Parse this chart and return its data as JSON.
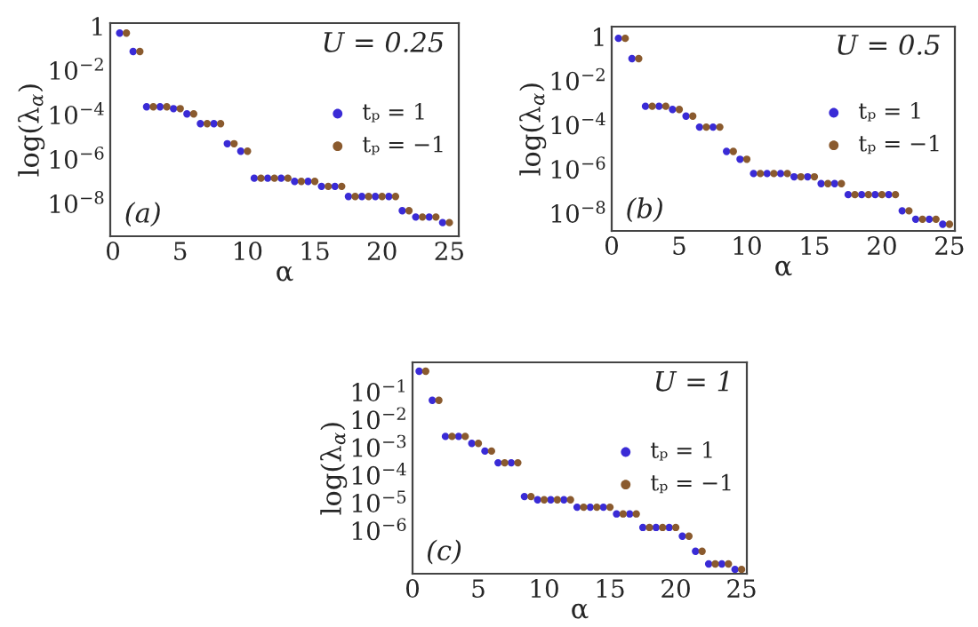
{
  "chart_data": [
    {
      "type": "scatter",
      "xlabel": "α",
      "ylabel": "log(λ$_{α}$)",
      "annotations": [
        "U = 0.25",
        "(a)"
      ],
      "log": "y",
      "marker": "circle",
      "legend": "right",
      "grid": false,
      "xlim": [
        -0.2,
        25.7
      ],
      "xticks": [
        0,
        5,
        10,
        15,
        20,
        25
      ],
      "ylim": [
        3.4e-10,
        1.35
      ],
      "yticks": [
        {
          "value": 1,
          "label": "1"
        },
        {
          "value": 0.01,
          "label": "10$^{−2}$"
        },
        {
          "value": 0.0001,
          "label": "10$^{−4}$"
        },
        {
          "value": 1e-06,
          "label": "10$^{−6}$"
        },
        {
          "value": 1e-08,
          "label": "10$^{−8}$"
        }
      ],
      "series": [
        {
          "name": "tₚ = 1",
          "color": "#3a2bd6",
          "x": [
            0.5,
            1.5,
            2.5,
            3.5,
            4.5,
            5.5,
            6.5,
            7.5,
            8.5,
            9.5,
            10.5,
            11.5,
            12.5,
            13.5,
            14.5,
            15.5,
            16.5,
            17.5,
            18.5,
            19.5,
            20.5,
            21.5,
            22.5,
            23.5,
            24.5
          ],
          "values": [
            0.48,
            0.071,
            0.00023,
            0.00023,
            0.00019,
            0.00011,
            4e-05,
            4e-05,
            5e-06,
            2.3e-06,
            1.4e-07,
            1.4e-07,
            1.4e-07,
            1e-07,
            1e-07,
            6e-08,
            6e-08,
            2.1e-08,
            2.1e-08,
            2.1e-08,
            2.1e-08,
            4.8e-09,
            2.5e-09,
            2.5e-09,
            1.4e-09
          ]
        },
        {
          "name": "tₚ = −1",
          "color": "#8a5a2e",
          "x": [
            1,
            2,
            3,
            4,
            5,
            6,
            7,
            8,
            9,
            10,
            11,
            12,
            13,
            14,
            15,
            16,
            17,
            18,
            19,
            20,
            21,
            22,
            23,
            24,
            25
          ],
          "values": [
            0.48,
            0.071,
            0.00023,
            0.00023,
            0.00019,
            0.00011,
            4e-05,
            4e-05,
            5e-06,
            2.3e-06,
            1.4e-07,
            1.4e-07,
            1.4e-07,
            1e-07,
            1e-07,
            6e-08,
            6e-08,
            2.1e-08,
            2.1e-08,
            2.1e-08,
            2.1e-08,
            4.8e-09,
            2.5e-09,
            2.5e-09,
            1.4e-09
          ]
        }
      ]
    },
    {
      "type": "scatter",
      "xlabel": "α",
      "ylabel": "log(λ$_{α}$)",
      "annotations": [
        "U = 0.5",
        "(b)"
      ],
      "log": "y",
      "marker": "circle",
      "legend": "right",
      "grid": false,
      "xlim": [
        0,
        25.4
      ],
      "xticks": [
        0,
        5,
        10,
        15,
        20,
        25
      ],
      "ylim": [
        1.6e-09,
        2.8
      ],
      "yticks": [
        {
          "value": 1,
          "label": "1"
        },
        {
          "value": 0.01,
          "label": "10$^{−2}$"
        },
        {
          "value": 0.0001,
          "label": "10$^{−4}$"
        },
        {
          "value": 1e-06,
          "label": "10$^{−6}$"
        },
        {
          "value": 1e-08,
          "label": "10$^{−8}$"
        }
      ],
      "series": [
        {
          "name": "tₚ = 1",
          "color": "#3a2bd6",
          "x": [
            0.5,
            1.5,
            2.5,
            3.5,
            4.5,
            5.5,
            6.5,
            7.5,
            8.5,
            9.5,
            10.5,
            11.5,
            12.5,
            13.5,
            14.5,
            15.5,
            16.5,
            17.5,
            18.5,
            19.5,
            20.5,
            21.5,
            22.5,
            23.5,
            24.5
          ],
          "values": [
            0.83,
            0.1,
            0.0007,
            0.0007,
            0.0005,
            0.00025,
            8e-05,
            8e-05,
            6.3e-06,
            2.8e-06,
            6.3e-07,
            6.3e-07,
            6.3e-07,
            4.5e-07,
            4.5e-07,
            2.2e-07,
            2.2e-07,
            7e-08,
            7e-08,
            7e-08,
            7e-08,
            1.3e-08,
            5.4e-09,
            5.4e-09,
            3.2e-09
          ]
        },
        {
          "name": "tₚ = −1",
          "color": "#8a5a2e",
          "x": [
            1,
            2,
            3,
            4,
            5,
            6,
            7,
            8,
            9,
            10,
            11,
            12,
            13,
            14,
            15,
            16,
            17,
            18,
            19,
            20,
            21,
            22,
            23,
            24,
            25
          ],
          "values": [
            0.83,
            0.1,
            0.0007,
            0.0007,
            0.0005,
            0.00025,
            8e-05,
            8e-05,
            6.3e-06,
            2.8e-06,
            6.3e-07,
            6.3e-07,
            6.3e-07,
            4.5e-07,
            4.5e-07,
            2.2e-07,
            2.2e-07,
            7e-08,
            7e-08,
            7e-08,
            7e-08,
            1.3e-08,
            5.4e-09,
            5.4e-09,
            3.2e-09
          ]
        }
      ]
    },
    {
      "type": "scatter",
      "xlabel": "α",
      "ylabel": "log(λ$_{α}$)",
      "annotations": [
        "U = 1",
        "(c)"
      ],
      "log": "y",
      "marker": "circle",
      "legend": "right",
      "grid": false,
      "xlim": [
        0,
        25.4
      ],
      "xticks": [
        0,
        5,
        10,
        15,
        20,
        25
      ],
      "ylim": [
        2.8e-08,
        1.17
      ],
      "yticks": [
        {
          "value": 0.1,
          "label": "10$^{−1}$"
        },
        {
          "value": 0.01,
          "label": "10$^{−2}$"
        },
        {
          "value": 0.001,
          "label": "10$^{−3}$"
        },
        {
          "value": 0.0001,
          "label": "10$^{−4}$"
        },
        {
          "value": 1e-05,
          "label": "10$^{−5}$"
        },
        {
          "value": 1e-06,
          "label": "10$^{−6}$"
        }
      ],
      "series": [
        {
          "name": "tₚ = 1",
          "color": "#3a2bd6",
          "x": [
            0.5,
            1.5,
            2.5,
            3.5,
            4.5,
            5.5,
            6.5,
            7.5,
            8.5,
            9.5,
            10.5,
            11.5,
            12.5,
            13.5,
            14.5,
            15.5,
            16.5,
            17.5,
            18.5,
            19.5,
            20.5,
            21.5,
            22.5,
            23.5,
            24.5
          ],
          "values": [
            0.56,
            0.05,
            0.0025,
            0.0025,
            0.0014,
            0.00074,
            0.00028,
            0.00028,
            1.7e-05,
            1.3e-05,
            1.3e-05,
            1.3e-05,
            7e-06,
            7e-06,
            7e-06,
            4e-06,
            4e-06,
            1.3e-06,
            1.3e-06,
            1.3e-06,
            6.3e-07,
            1.8e-07,
            6.3e-08,
            6.3e-08,
            4e-08
          ]
        },
        {
          "name": "tₚ = −1",
          "color": "#8a5a2e",
          "x": [
            1,
            2,
            3,
            4,
            5,
            6,
            7,
            8,
            9,
            10,
            11,
            12,
            13,
            14,
            15,
            16,
            17,
            18,
            19,
            20,
            21,
            22,
            23,
            24,
            25
          ],
          "values": [
            0.56,
            0.05,
            0.0025,
            0.0025,
            0.0014,
            0.00074,
            0.00028,
            0.00028,
            1.7e-05,
            1.3e-05,
            1.3e-05,
            1.3e-05,
            7e-06,
            7e-06,
            7e-06,
            4e-06,
            4e-06,
            1.3e-06,
            1.3e-06,
            1.3e-06,
            6.3e-07,
            1.8e-07,
            6.3e-08,
            6.3e-08,
            4e-08
          ]
        }
      ]
    }
  ]
}
